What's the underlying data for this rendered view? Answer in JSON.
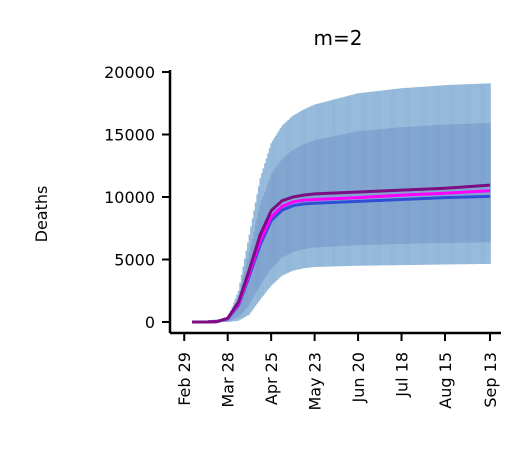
{
  "chart_data": {
    "type": "area",
    "title": "m=2",
    "xlabel": "",
    "ylabel": "Deaths",
    "x_start": "2020-03-05",
    "x_end": "2020-09-13",
    "x_ticks": [
      "Feb 29",
      "Mar 28",
      "Apr 25",
      "May 23",
      "Jun 20",
      "Jul 18",
      "Aug 15",
      "Sep 13"
    ],
    "y_ticks": [
      "0",
      "5000",
      "10000",
      "15000",
      "20000"
    ],
    "ylim": [
      -800,
      20000
    ],
    "grid": false,
    "legend": "none",
    "uncertainty_band": {
      "color": "#6fa0cc",
      "x": [
        "Mar 5",
        "Mar 28",
        "Apr 4",
        "Apr 11",
        "Apr 18",
        "Apr 25",
        "May 2",
        "May 9",
        "May 16",
        "May 23",
        "Jun 20",
        "Jul 18",
        "Aug 15",
        "Sep 13"
      ],
      "lower": [
        0,
        0,
        100,
        600,
        1800,
        2900,
        3700,
        4100,
        4300,
        4400,
        4500,
        4550,
        4600,
        4650
      ],
      "upper": [
        0,
        300,
        2500,
        7000,
        11500,
        14300,
        15700,
        16500,
        17000,
        17400,
        18300,
        18700,
        18950,
        19100
      ]
    },
    "series": [
      {
        "color": "#7b0f82",
        "x": [
          "Mar 5",
          "Mar 14",
          "Mar 21",
          "Mar 28",
          "Apr 4",
          "Apr 11",
          "Apr 18",
          "Apr 25",
          "May 2",
          "May 9",
          "May 16",
          "May 23",
          "Jun 20",
          "Jul 18",
          "Aug 15",
          "Sep 13"
        ],
        "values": [
          0,
          0,
          30,
          300,
          1600,
          4200,
          7000,
          8900,
          9700,
          10000,
          10150,
          10250,
          10400,
          10550,
          10700,
          10950
        ]
      },
      {
        "color": "#ff00ff",
        "x": [
          "Mar 5",
          "Mar 14",
          "Mar 21",
          "Mar 28",
          "Apr 4",
          "Apr 11",
          "Apr 18",
          "Apr 25",
          "May 2",
          "May 9",
          "May 16",
          "May 23",
          "Jun 20",
          "Jul 18",
          "Aug 15",
          "Sep 13"
        ],
        "values": [
          0,
          0,
          30,
          280,
          1450,
          3900,
          6500,
          8400,
          9250,
          9600,
          9750,
          9800,
          9950,
          10150,
          10300,
          10500
        ]
      },
      {
        "color": "#2e4fd6",
        "x": [
          "Mar 5",
          "Mar 14",
          "Mar 21",
          "Mar 28",
          "Apr 4",
          "Apr 11",
          "Apr 18",
          "Apr 25",
          "May 2",
          "May 9",
          "May 16",
          "May 23",
          "Jun 20",
          "Jul 18",
          "Aug 15",
          "Sep 13"
        ],
        "values": [
          0,
          0,
          25,
          260,
          1350,
          3700,
          6200,
          8100,
          8950,
          9300,
          9450,
          9500,
          9650,
          9800,
          9950,
          10050
        ]
      }
    ]
  }
}
